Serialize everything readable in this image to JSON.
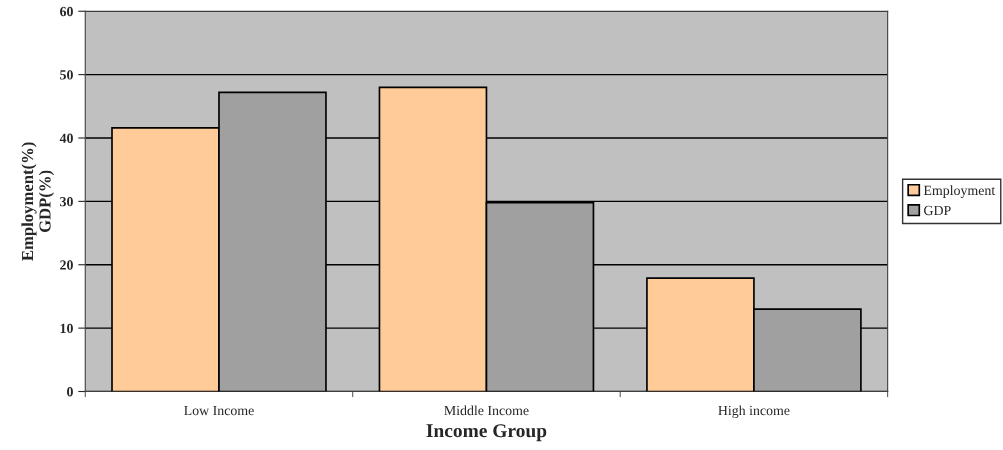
{
  "chart_data": {
    "type": "bar",
    "xlabel": "Income Group",
    "ylabel": "Employment(%)\nGDP(%)",
    "categories": [
      "Low Income",
      "Middle Income",
      "High income"
    ],
    "series": [
      {
        "name": "Employment",
        "color": "#ffcc99",
        "values": [
          41.6,
          48,
          17.9
        ]
      },
      {
        "name": "GDP",
        "color": "#a0a0a0",
        "values": [
          47.2,
          29.8,
          13
        ]
      }
    ],
    "ylim": [
      0,
      60
    ],
    "yticks": [
      0,
      10,
      20,
      30,
      40,
      50,
      60
    ],
    "grid": "y",
    "legend": "right"
  }
}
